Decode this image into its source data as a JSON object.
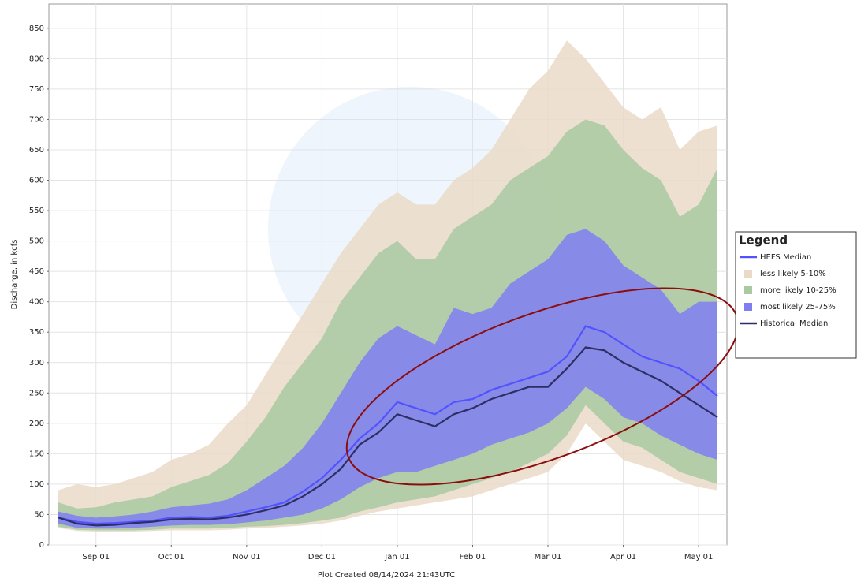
{
  "chart_data": {
    "type": "band",
    "ylabel": "Discharge, in kcfs",
    "xlabel": "Plot Created 08/14/2024 21:43UTC",
    "legend_title": "Legend",
    "legend": "right",
    "grid": true,
    "ylim": [
      0,
      890
    ],
    "yticks": [
      0,
      50,
      100,
      150,
      200,
      250,
      300,
      350,
      400,
      450,
      500,
      550,
      600,
      650,
      700,
      750,
      800,
      850
    ],
    "categories": [
      null,
      null,
      "Sep 01",
      null,
      null,
      null,
      "Oct 01",
      null,
      null,
      null,
      "Nov 01",
      null,
      null,
      null,
      "Dec 01",
      null,
      null,
      null,
      "Jan 01",
      null,
      null,
      null,
      "Feb 01",
      null,
      null,
      null,
      "Mar 01",
      null,
      null,
      null,
      "Apr 01",
      null,
      null,
      null,
      "May 01",
      null
    ],
    "series": [
      {
        "name": "HEFS Median",
        "kind": "line",
        "color": "#5252ff",
        "values": [
          45,
          38,
          35,
          36,
          38,
          40,
          45,
          46,
          45,
          48,
          55,
          62,
          70,
          88,
          110,
          140,
          175,
          200,
          235,
          225,
          215,
          235,
          240,
          255,
          265,
          275,
          285,
          310,
          360,
          350,
          330,
          310,
          300,
          290,
          270,
          245
        ]
      },
      {
        "name": "less likely 5-10%",
        "kind": "band",
        "color": "#eadbc8",
        "values": [
          90,
          100,
          95,
          100,
          110,
          120,
          140,
          150,
          165,
          200,
          230,
          280,
          330,
          380,
          430,
          480,
          520,
          560,
          580,
          560,
          560,
          600,
          620,
          650,
          700,
          750,
          780,
          830,
          800,
          760,
          720,
          700,
          720,
          650,
          680,
          690
        ],
        "lower": [
          28,
          23,
          22,
          22,
          22,
          23,
          24,
          24,
          24,
          25,
          27,
          28,
          30,
          32,
          35,
          40,
          48,
          55,
          60,
          65,
          70,
          75,
          80,
          90,
          100,
          110,
          120,
          150,
          200,
          170,
          140,
          130,
          120,
          105,
          95,
          90
        ]
      },
      {
        "name": "more likely 10-25%",
        "kind": "band",
        "color": "#a9c9a2",
        "values": [
          70,
          60,
          62,
          70,
          75,
          80,
          95,
          105,
          115,
          135,
          170,
          210,
          260,
          300,
          340,
          400,
          440,
          480,
          500,
          470,
          470,
          520,
          540,
          560,
          600,
          620,
          640,
          680,
          700,
          690,
          650,
          620,
          600,
          540,
          560,
          620
        ],
        "lower": [
          30,
          25,
          24,
          24,
          24,
          25,
          27,
          27,
          27,
          28,
          30,
          31,
          33,
          36,
          40,
          45,
          55,
          62,
          70,
          75,
          80,
          90,
          100,
          110,
          120,
          135,
          150,
          180,
          230,
          200,
          170,
          160,
          140,
          120,
          110,
          100
        ]
      },
      {
        "name": "most likely 25-75%",
        "kind": "band",
        "color": "#7f7ff2",
        "values": [
          55,
          48,
          45,
          47,
          50,
          55,
          62,
          65,
          68,
          75,
          90,
          110,
          130,
          160,
          200,
          250,
          300,
          340,
          360,
          345,
          330,
          390,
          380,
          390,
          430,
          450,
          470,
          510,
          520,
          500,
          460,
          440,
          420,
          380,
          400,
          400
        ],
        "lower": [
          35,
          28,
          27,
          27,
          28,
          30,
          32,
          33,
          33,
          34,
          37,
          40,
          45,
          50,
          60,
          75,
          95,
          110,
          120,
          120,
          130,
          140,
          150,
          165,
          175,
          185,
          200,
          225,
          260,
          240,
          210,
          200,
          180,
          165,
          150,
          140
        ]
      },
      {
        "name": "Historical Median",
        "kind": "line",
        "color": "#2e2e66",
        "values": [
          45,
          35,
          32,
          33,
          36,
          38,
          42,
          43,
          42,
          45,
          50,
          57,
          65,
          80,
          100,
          125,
          165,
          185,
          215,
          205,
          195,
          215,
          225,
          240,
          250,
          260,
          260,
          290,
          325,
          320,
          300,
          285,
          270,
          250,
          230,
          210
        ]
      }
    ]
  }
}
